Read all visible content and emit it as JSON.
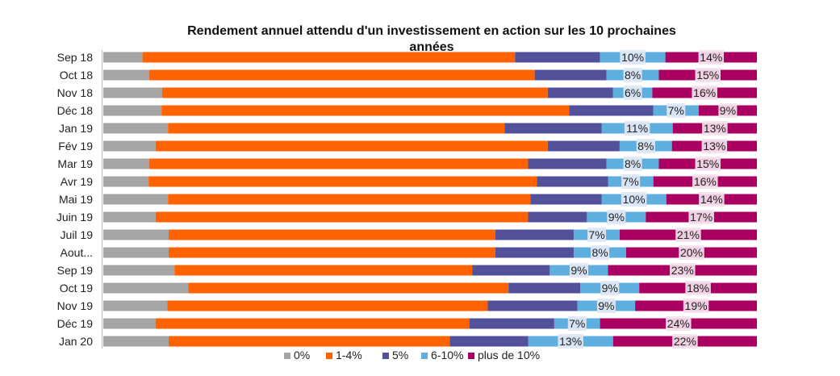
{
  "chart_data": {
    "type": "bar",
    "orientation": "horizontal",
    "stacked": "percent",
    "title_lines": [
      "Rendement annuel attendu d'un investissement en action sur les 10 prochaines",
      "années"
    ],
    "categories": [
      "Sep 18",
      "Oct 18",
      "Nov 18",
      "Déc 18",
      "Jan 19",
      "Fév 19",
      "Mar 19",
      "Avr 19",
      "Mai 19",
      "Juin 19",
      "Juil 19",
      "Aout...",
      "Sep 19",
      "Oct 19",
      "Nov 19",
      "Déc 19",
      "Jan 20"
    ],
    "series": [
      {
        "name": "0%",
        "color": "#a5a5a5",
        "values": [
          6,
          7,
          9,
          9,
          10,
          8,
          7,
          7,
          10,
          8,
          10,
          10,
          11,
          13,
          10,
          8,
          10
        ]
      },
      {
        "name": "1-4%",
        "color": "#ff6200",
        "values": [
          57,
          59,
          59,
          63,
          52,
          60,
          58,
          60,
          56,
          57,
          50,
          50,
          46,
          49,
          50,
          48,
          43
        ]
      },
      {
        "name": "5%",
        "color": "#525199",
        "values": [
          13,
          11,
          10,
          13,
          15,
          11,
          12,
          11,
          11,
          9,
          12,
          12,
          12,
          11,
          14,
          13,
          12
        ]
      },
      {
        "name": "6-10%",
        "color": "#5faee0",
        "values": [
          10,
          8,
          6,
          7,
          11,
          8,
          8,
          7,
          10,
          9,
          7,
          8,
          9,
          9,
          9,
          7,
          13
        ]
      },
      {
        "name": "plus de 10%",
        "color": "#a90061",
        "values": [
          14,
          15,
          16,
          9,
          13,
          13,
          15,
          16,
          14,
          17,
          21,
          20,
          23,
          18,
          19,
          24,
          22
        ]
      }
    ],
    "data_labels": {
      "6-10%": [
        "10%",
        "8%",
        "6%",
        "7%",
        "11%",
        "8%",
        "8%",
        "7%",
        "10%",
        "9%",
        "7%",
        "8%",
        "9%",
        "9%",
        "9%",
        "7%",
        "13%"
      ],
      "plus de 10%": [
        "14%",
        "15%",
        "16%",
        "9%",
        "13%",
        "13%",
        "15%",
        "16%",
        "14%",
        "17%",
        "21%",
        "20%",
        "23%",
        "18%",
        "19%",
        "24%",
        "22%"
      ]
    },
    "xlim": [
      0,
      100
    ],
    "legend_position": "bottom"
  }
}
